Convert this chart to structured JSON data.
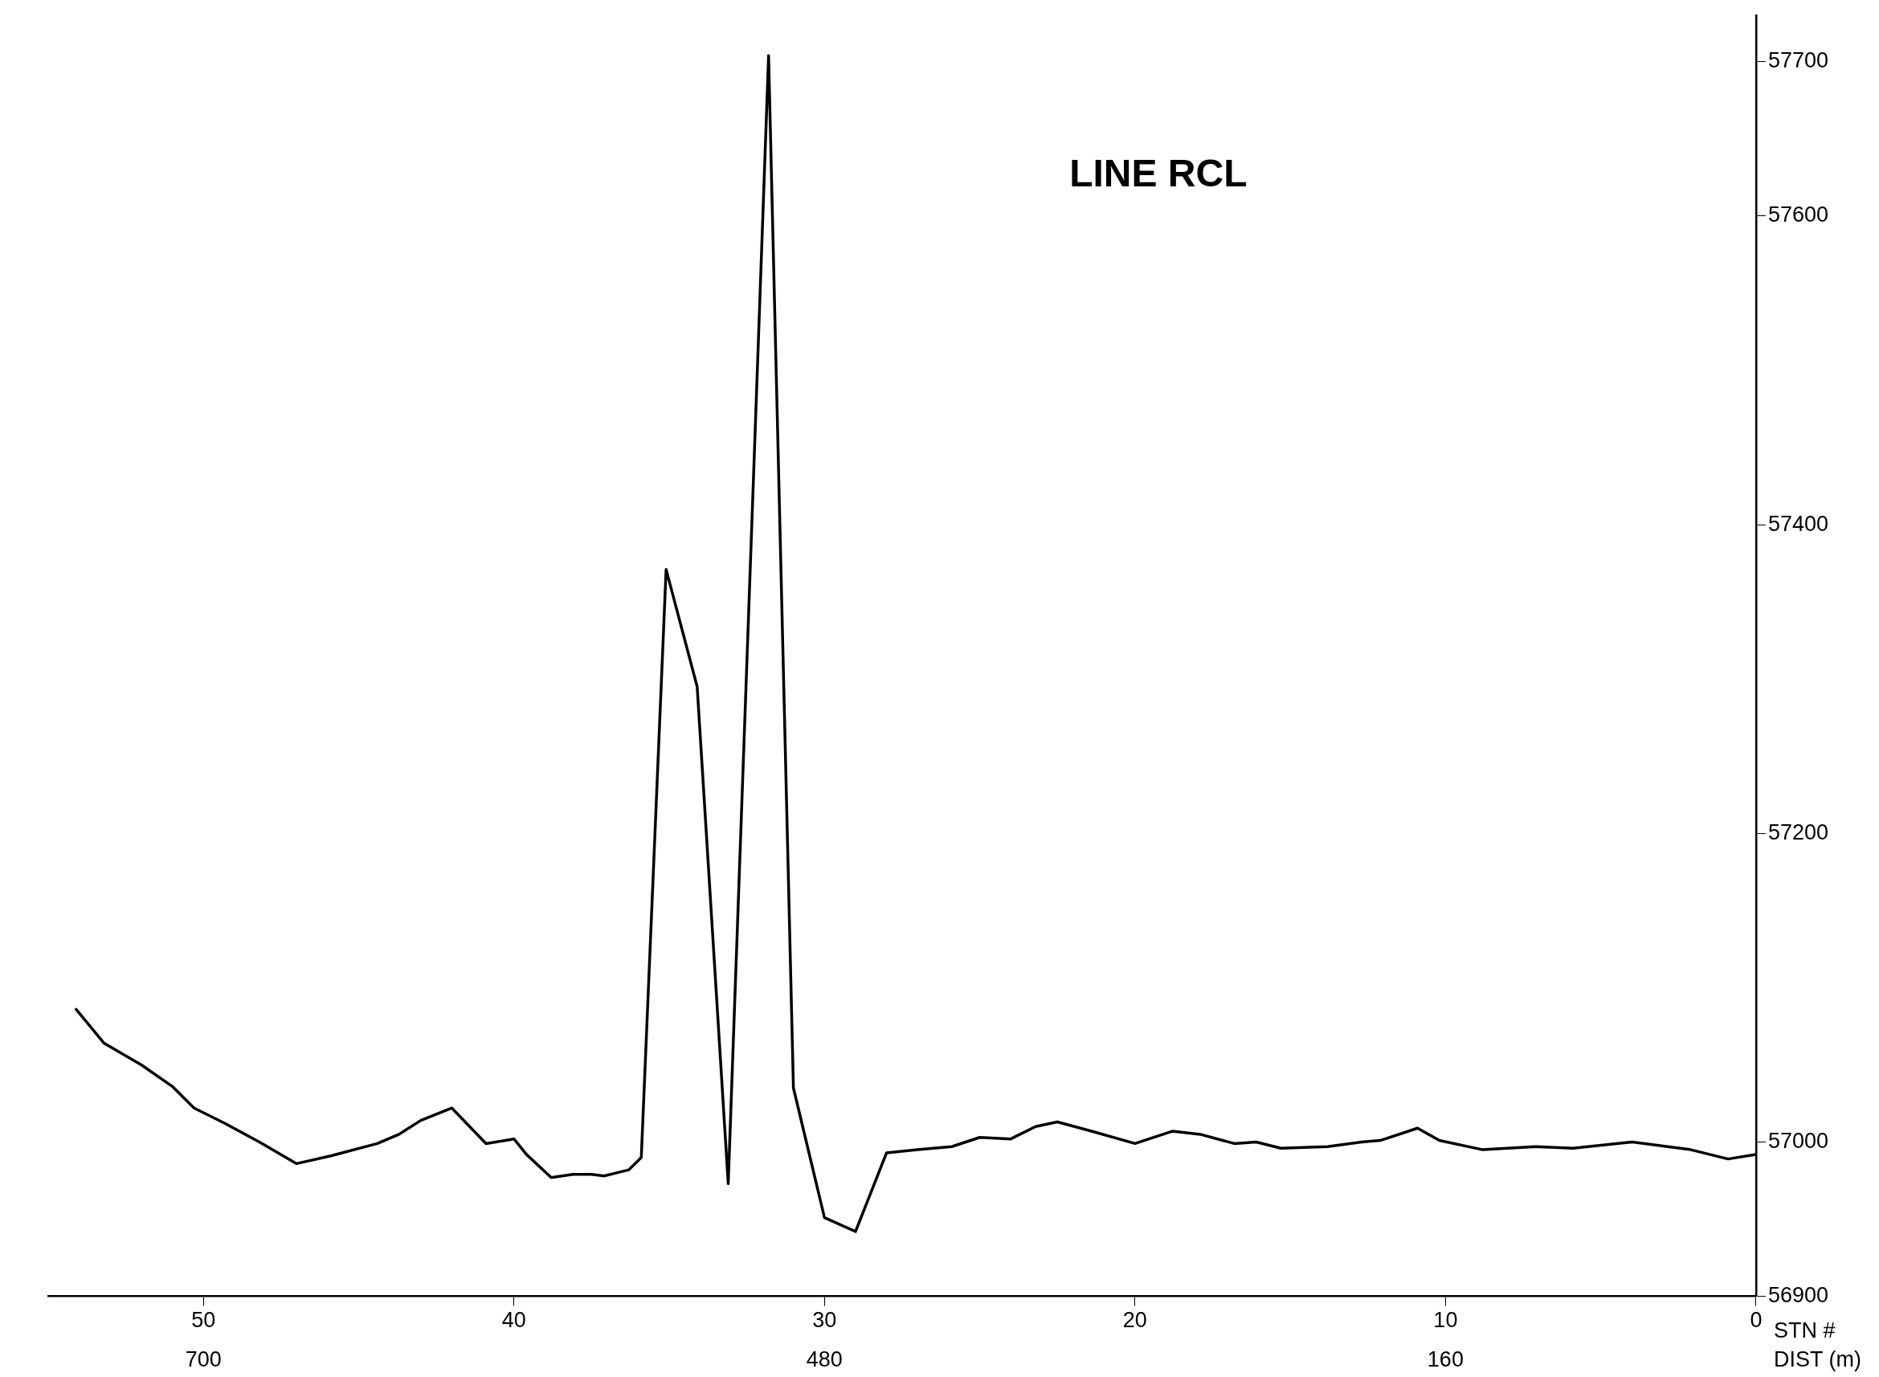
{
  "chart_data": {
    "type": "line",
    "title": "LINE RCL",
    "xlabel": "STN #",
    "xlim": [
      55,
      0
    ],
    "xticks": [
      0,
      10,
      20,
      30,
      40,
      50
    ],
    "annotations": [
      "DIST (m)",
      "700",
      "480",
      "160"
    ],
    "ylim": [
      56900,
      57730
    ],
    "yticks": [
      56900,
      57000,
      57200,
      57400,
      57600,
      57700
    ],
    "grid": false,
    "legend": false,
    "marker": "none",
    "line_style": "solid",
    "series": [
      {
        "color": "#000000",
        "x": [
          54.1,
          53.2,
          52,
          51,
          50.3,
          49.3,
          48.2,
          47,
          45.9,
          44.4,
          43.7,
          43,
          42,
          40.9,
          40,
          39.6,
          38.8,
          38.1,
          37.5,
          37.1,
          36.3,
          35.9,
          35.1,
          34.1,
          33.1,
          31.8,
          31,
          30,
          29,
          28,
          27,
          25.9,
          25,
          24,
          23.2,
          22.5,
          21.4,
          20,
          18.8,
          17.9,
          16.8,
          16.1,
          15.3,
          13.8,
          12.7,
          12.1,
          10.9,
          10.2,
          8.8,
          7.1,
          5.9,
          4,
          2.1,
          0.9,
          0
        ],
        "values": [
          57086,
          57064,
          57050,
          57036,
          57022,
          57012,
          57000,
          56986,
          56991,
          56999,
          57005,
          57014,
          57022,
          56999,
          57002,
          56992,
          56977,
          56979,
          56979,
          56978,
          56982,
          56990,
          57371,
          57295,
          56973,
          57704,
          57035,
          56951,
          56942,
          56993,
          56995,
          56997,
          57003,
          57002,
          57010,
          57013,
          57007,
          56999,
          57007,
          57005,
          56999,
          57000,
          56996,
          56997,
          57000,
          57001,
          57009,
          57001,
          56995,
          56997,
          56996,
          57000,
          56995,
          56989,
          56992
        ]
      }
    ]
  }
}
